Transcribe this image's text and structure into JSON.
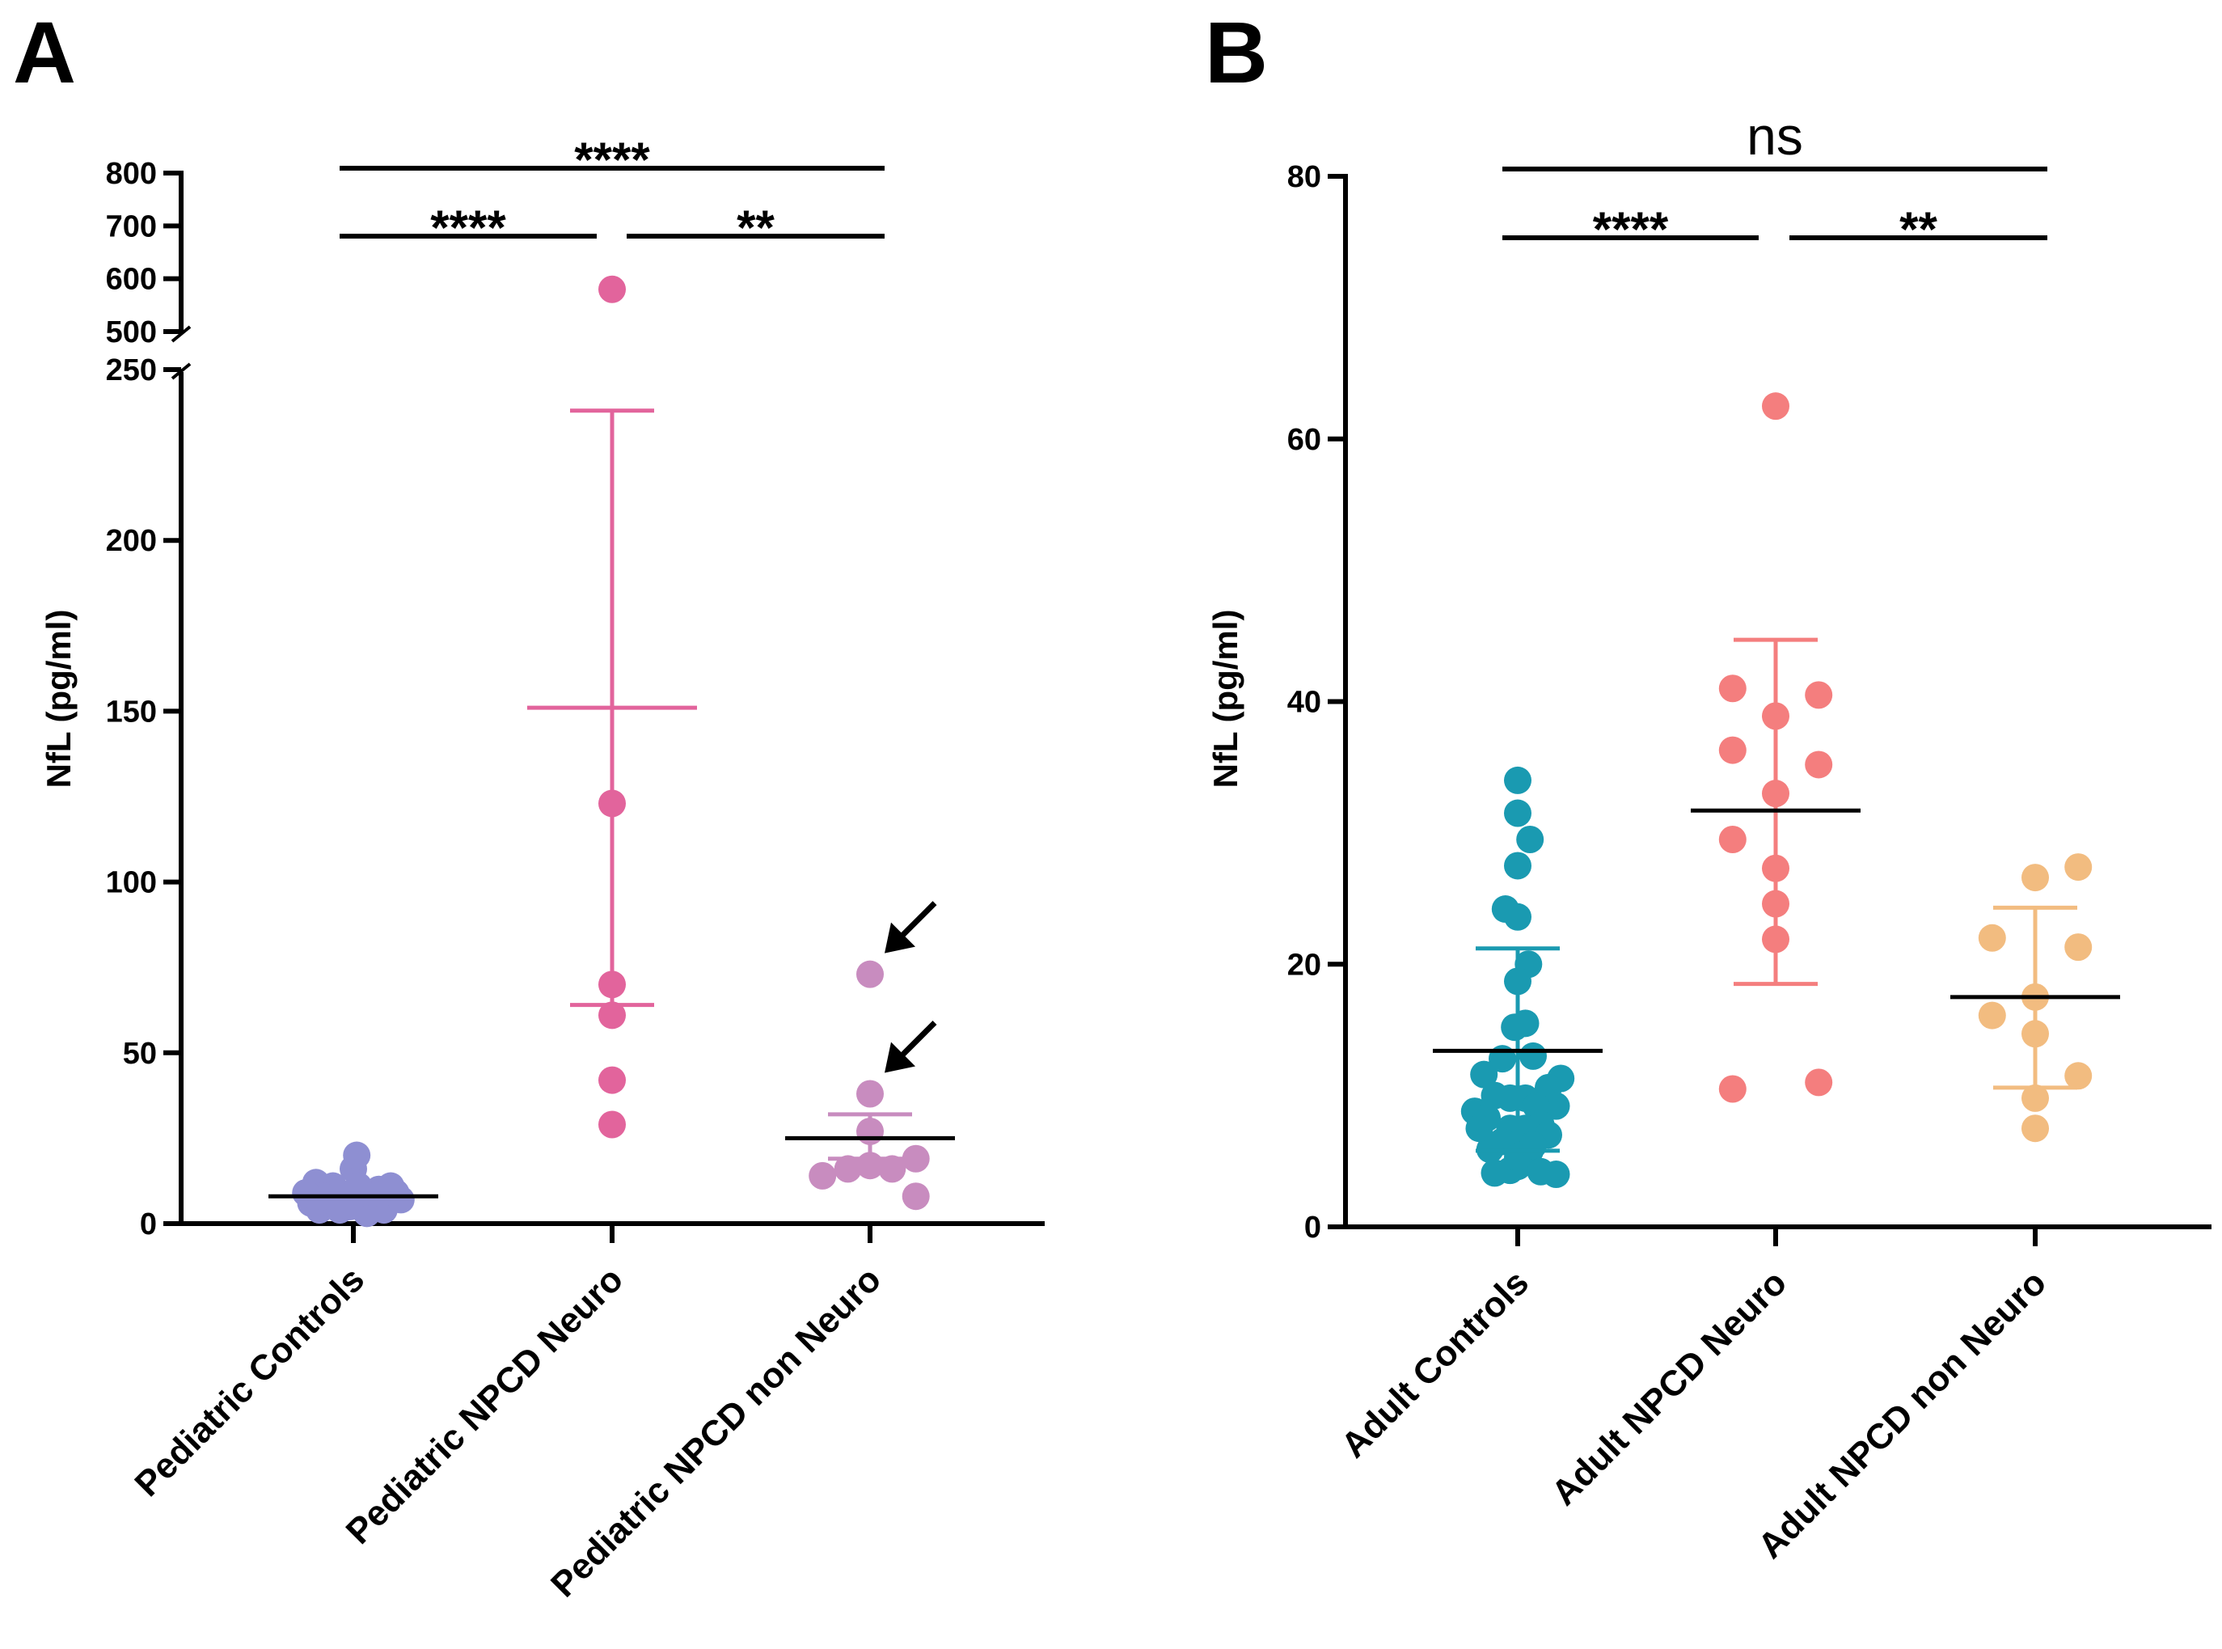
{
  "chart_data": [
    {
      "type": "scatter",
      "panel": "A",
      "ylabel": "NfL (pg/ml)",
      "ylim": [
        0,
        800
      ],
      "axis_break": [
        250,
        500
      ],
      "yticks": [
        0,
        50,
        100,
        150,
        200,
        250,
        500,
        600,
        700,
        800
      ],
      "categories": [
        "Pediatric Controls",
        "Pediatric NPCD Neuro",
        "Pediatric NPCD non Neuro"
      ],
      "colors": [
        "#8E8FD2",
        "#E2649C",
        "#C88CBF"
      ],
      "series": [
        {
          "name": "Pediatric Controls",
          "points": [
            [
              -0.22,
              12
            ],
            [
              -0.12,
              11
            ],
            [
              0,
              16
            ],
            [
              0.02,
              20
            ],
            [
              -0.25,
              6
            ],
            [
              -0.2,
              4
            ],
            [
              -0.15,
              6
            ],
            [
              -0.1,
              9
            ],
            [
              -0.05,
              7
            ],
            [
              0.05,
              8
            ],
            [
              0.1,
              6
            ],
            [
              0.15,
              10
            ],
            [
              0.2,
              6
            ],
            [
              0.25,
              9
            ],
            [
              -0.18,
              8
            ],
            [
              0.08,
              3
            ],
            [
              -0.08,
              4
            ],
            [
              0.18,
              4
            ],
            [
              0.28,
              7
            ],
            [
              -0.02,
              5
            ],
            [
              0.12,
              9
            ],
            [
              -0.28,
              9
            ],
            [
              0.03,
              11
            ],
            [
              0.22,
              11
            ]
          ],
          "mean": 8,
          "sd_low": 6,
          "sd_high": 10
        },
        {
          "name": "Pediatric NPCD Neuro",
          "points": [
            [
              0,
              580
            ],
            [
              0,
              123
            ],
            [
              0,
              70
            ],
            [
              0,
              61
            ],
            [
              0,
              42
            ],
            [
              0,
              29
            ]
          ],
          "mean": 151,
          "sd_low": 64,
          "sd_high": 238
        },
        {
          "name": "Pediatric NPCD non Neuro",
          "points": [
            [
              0,
              73
            ],
            [
              0,
              38
            ],
            [
              0,
              27
            ],
            [
              -0.28,
              14
            ],
            [
              -0.13,
              16
            ],
            [
              0,
              17
            ],
            [
              0.13,
              16
            ],
            [
              0.27,
              19
            ],
            [
              0.27,
              8
            ]
          ],
          "mean": 25,
          "sd_low": 19,
          "sd_high": 32
        }
      ],
      "arrows_point_to": [
        73,
        38
      ],
      "significance": [
        {
          "from": 0,
          "to": 2,
          "label": "****"
        },
        {
          "from": 0,
          "to": 1,
          "label": "****"
        },
        {
          "from": 1,
          "to": 2,
          "label": "**"
        }
      ]
    },
    {
      "type": "scatter",
      "panel": "B",
      "ylabel": "NfL (pg/ml)",
      "ylim": [
        0,
        80
      ],
      "yticks": [
        0,
        20,
        40,
        60,
        80
      ],
      "categories": [
        "Adult Controls",
        "Adult NPCD Neuro",
        "Adult NPCD non Neuro"
      ],
      "colors": [
        "#1A9AB1",
        "#F47E7E",
        "#F2BC80"
      ],
      "series": [
        {
          "name": "Adult Controls",
          "points": [
            [
              0,
              34
            ],
            [
              0,
              31.5
            ],
            [
              0.08,
              29.5
            ],
            [
              0,
              27.5
            ],
            [
              -0.08,
              24.2
            ],
            [
              0,
              23.6
            ],
            [
              0.07,
              20
            ],
            [
              0,
              18.7
            ],
            [
              -0.02,
              15.2
            ],
            [
              0.05,
              15.5
            ],
            [
              0.1,
              13
            ],
            [
              -0.1,
              12.8
            ],
            [
              -0.22,
              11.6
            ],
            [
              0.28,
              11.3
            ],
            [
              0.2,
              10.6
            ],
            [
              0.25,
              9.2
            ],
            [
              -0.28,
              8.8
            ],
            [
              -0.15,
              10
            ],
            [
              -0.05,
              9.8
            ],
            [
              0.05,
              9.8
            ],
            [
              0.12,
              9.2
            ],
            [
              -0.2,
              8.3
            ],
            [
              -0.05,
              7.5
            ],
            [
              0.05,
              7.5
            ],
            [
              0.15,
              7.8
            ],
            [
              -0.1,
              6.5
            ],
            [
              0,
              6.2
            ],
            [
              0.08,
              5.8
            ],
            [
              -0.18,
              5.9
            ],
            [
              0.2,
              7
            ],
            [
              -0.05,
              4.3
            ],
            [
              0,
              4.6
            ],
            [
              0.15,
              4.2
            ],
            [
              -0.15,
              4.1
            ],
            [
              0,
              5.3
            ],
            [
              0.25,
              4
            ],
            [
              -0.25,
              7.5
            ],
            [
              0.1,
              6.2
            ]
          ],
          "mean": 13.4,
          "sd_low": 5.8,
          "sd_high": 21.2
        },
        {
          "name": "Adult NPCD Neuro",
          "points": [
            [
              0,
              62.5
            ],
            [
              -0.28,
              41
            ],
            [
              0,
              38.9
            ],
            [
              0.28,
              40.5
            ],
            [
              -0.28,
              36.3
            ],
            [
              0.28,
              35.2
            ],
            [
              0,
              33
            ],
            [
              -0.28,
              29.5
            ],
            [
              0,
              27.3
            ],
            [
              0,
              24.6
            ],
            [
              0,
              21.9
            ],
            [
              -0.28,
              10.5
            ],
            [
              0.28,
              11
            ]
          ],
          "mean": 31.7,
          "sd_low": 18.5,
          "sd_high": 44.7
        },
        {
          "name": "Adult NPCD non Neuro",
          "points": [
            [
              0,
              26.6
            ],
            [
              0.28,
              27.4
            ],
            [
              -0.28,
              22
            ],
            [
              0.28,
              21.3
            ],
            [
              -0.28,
              16.1
            ],
            [
              0,
              17.5
            ],
            [
              0,
              14.7
            ],
            [
              0.28,
              11.5
            ],
            [
              0,
              9.8
            ],
            [
              0,
              7.5
            ]
          ],
          "mean": 17.5,
          "sd_low": 10.6,
          "sd_high": 24.3
        }
      ],
      "significance": [
        {
          "from": 0,
          "to": 2,
          "label": "ns"
        },
        {
          "from": 0,
          "to": 1,
          "label": "****"
        },
        {
          "from": 1,
          "to": 2,
          "label": "**"
        }
      ]
    }
  ]
}
